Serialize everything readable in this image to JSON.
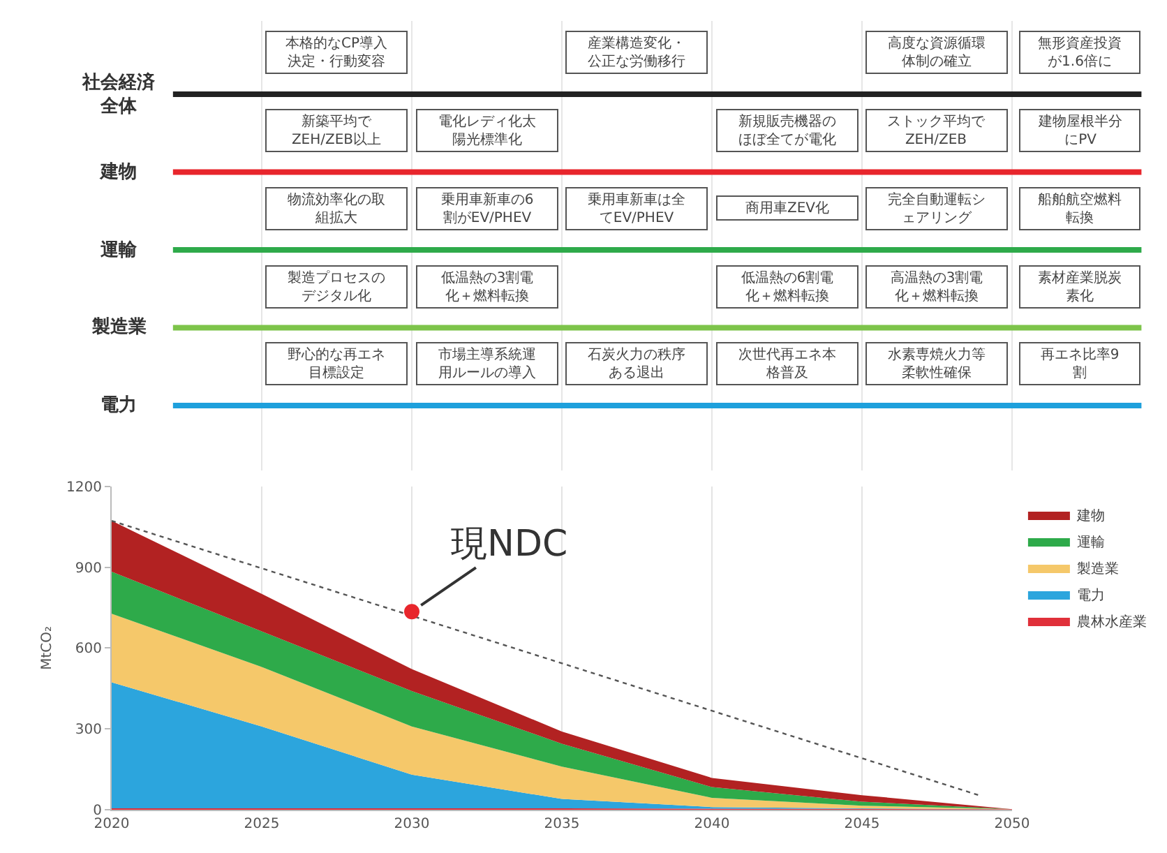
{
  "chart_data": [
    {
      "type": "other",
      "categories": [
        null,
        null,
        null,
        null,
        null,
        null
      ],
      "y_categories": [
        "社会経済全体",
        "建物",
        "運輸",
        "製造業",
        "電力"
      ],
      "colors": [
        "#222222",
        "#e8262c",
        "#2eaa4a",
        "#7dc44a",
        "#1ea0dc"
      ],
      "cell_labels": [
        [
          "本格的なCP導入決定・行動変容",
          null,
          "産業構造変化・公正な労働移行",
          null,
          "高度な資源循環体制の確立",
          "無形資産投資が1.6倍に"
        ],
        [
          "新築平均でZEH/ZEB以上",
          "電化レディ化太陽光標準化",
          null,
          "新規販売機器のほぼ全てが電化",
          "ストック平均でZEH/ZEB",
          "建物屋根半分にPV"
        ],
        [
          "物流効率化の取組拡大",
          "乗用車新車の6割がEV/PHEV",
          "乗用車新車は全てEV/PHEV",
          "商用車ZEV化",
          "完全自動運転シェアリング",
          "船舶航空燃料転換"
        ],
        [
          "製造プロセスのデジタル化",
          "低温熱の3割電化＋燃料転換",
          null,
          "低温熱の6割電化＋燃料転換",
          "高温熱の3割電化＋燃料転換",
          "素材産業脱炭素化"
        ],
        [
          "野心的な再エネ目標設定",
          "市場主導系統運用ルールの導入",
          "石炭火力の秩序ある退出",
          "次世代再エネ本格普及",
          "水素専焼火力等柔軟性確保",
          "再エネ比率9割"
        ]
      ]
    },
    {
      "type": "area",
      "stacked": true,
      "x": [
        2020,
        2025,
        2030,
        2035,
        2040,
        2045,
        2050
      ],
      "series": [
        {
          "name": "農林水産業",
          "color": "#e0303a",
          "values": [
            5,
            5,
            5,
            5,
            4,
            3,
            2
          ]
        },
        {
          "name": "電力",
          "color": "#2ca5dd",
          "values": [
            468,
            304,
            125,
            35,
            6,
            2,
            0
          ]
        },
        {
          "name": "製造業",
          "color": "#f5c86a",
          "values": [
            254,
            221,
            179,
            120,
            34,
            10,
            0
          ]
        },
        {
          "name": "運輸",
          "color": "#2eaa4a",
          "values": [
            156,
            132,
            131,
            85,
            40,
            15,
            0
          ]
        },
        {
          "name": "建物",
          "color": "#b22222",
          "values": [
            189,
            139,
            82,
            45,
            34,
            24,
            0
          ]
        },
        {
          "type": "line",
          "color": "#555555",
          "line_style": "dotted",
          "x": [
            2020,
            2049
          ],
          "values": [
            1072,
            50
          ]
        },
        {
          "type": "scatter",
          "color": "#e8262c",
          "marker": "circle",
          "x": [
            2030
          ],
          "values": [
            735
          ]
        }
      ],
      "annotations": [
        {
          "text": "現NDC",
          "x": 2030,
          "y": 735
        }
      ],
      "ylabel": "MtCO₂",
      "xlim": [
        2020,
        2050
      ],
      "xticks": [
        2020,
        2025,
        2030,
        2035,
        2040,
        2045,
        2050
      ],
      "ylim": [
        0,
        1200
      ],
      "yticks": [
        0,
        300,
        600,
        900,
        1200
      ],
      "grid": "x",
      "legend": "right"
    }
  ]
}
